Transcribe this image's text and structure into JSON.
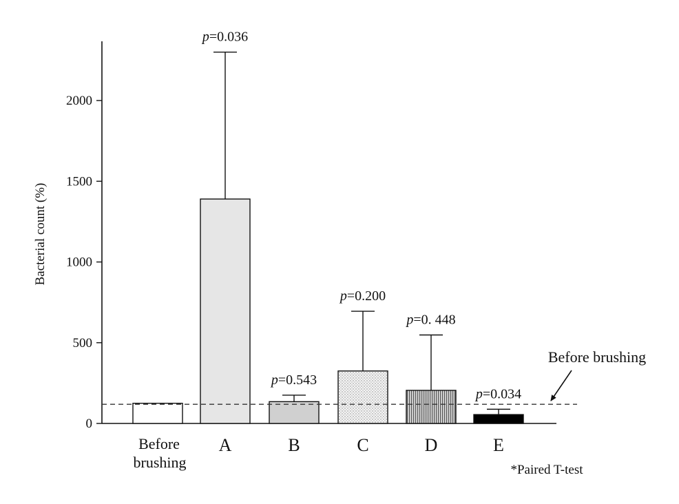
{
  "chart_data": {
    "type": "bar",
    "ylabel": "Bacterial count (%)",
    "ylim": [
      0,
      2350
    ],
    "yticks": [
      0,
      500,
      1000,
      1500,
      2000
    ],
    "categories": [
      {
        "label_lines": [
          "Before",
          "brushing"
        ]
      },
      {
        "label_lines": [
          "A"
        ]
      },
      {
        "label_lines": [
          "B"
        ]
      },
      {
        "label_lines": [
          "C"
        ]
      },
      {
        "label_lines": [
          "D"
        ]
      },
      {
        "label_lines": [
          "E"
        ]
      }
    ],
    "values": [
      125,
      1390,
      135,
      325,
      205,
      55
    ],
    "error_upper": [
      null,
      2300,
      175,
      695,
      548,
      88
    ],
    "fills": [
      "white",
      "#e6e6e6",
      "#d0d0d0",
      "dots",
      "vstripes",
      "#000000"
    ],
    "p_values": [
      null,
      "=0.036",
      "=0.543",
      "=0.200",
      "=0. 448",
      "=0.034"
    ],
    "p_symbol": "p",
    "reference_line": {
      "value": 125,
      "label": "Before brushing",
      "style": "dashed"
    },
    "footnote": "*Paired T-test"
  }
}
